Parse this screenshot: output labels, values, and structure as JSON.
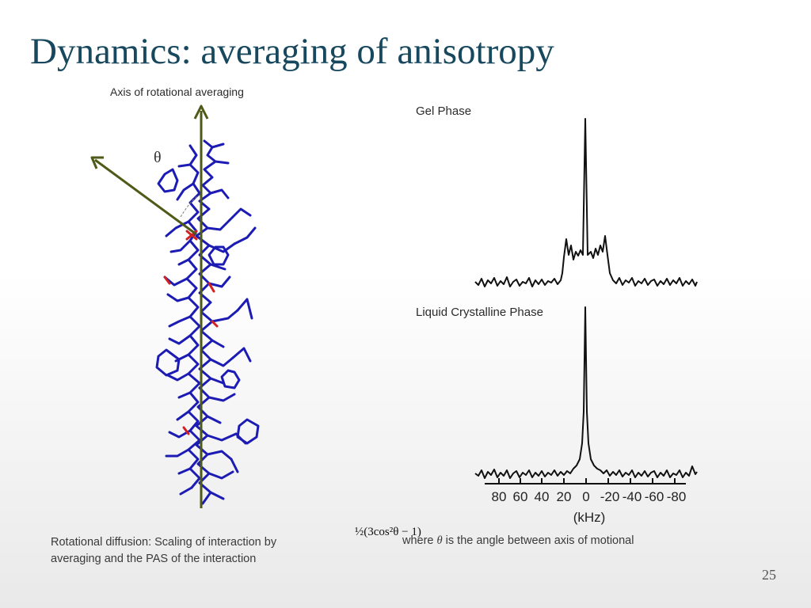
{
  "slide": {
    "title": "Dynamics: averaging of anisotropy",
    "axis_label": "Axis of rotational averaging",
    "theta_symbol": "θ",
    "gel_phase_label": "Gel Phase",
    "lc_phase_label": "Liquid Crystalline Phase",
    "caption_line1": "Rotational diffusion: Scaling of interaction by",
    "caption_line2": "averaging and the PAS of the interaction",
    "formula": "½(3cos²θ − 1)",
    "where_prefix": "where ",
    "where_theta": "θ",
    "where_suffix": " is the angle between axis of motional",
    "page_number": "25",
    "spectrum_tick_labels": [
      "80",
      "60",
      "40",
      "20",
      "0",
      "-20",
      "-40",
      "-60",
      "-80"
    ],
    "spectrum_unit_label": "(kHz)"
  },
  "colors": {
    "title": "#17485e",
    "arrow": "#4e5a17",
    "molecule": "#1c1cb4",
    "accent": "#d42020"
  }
}
